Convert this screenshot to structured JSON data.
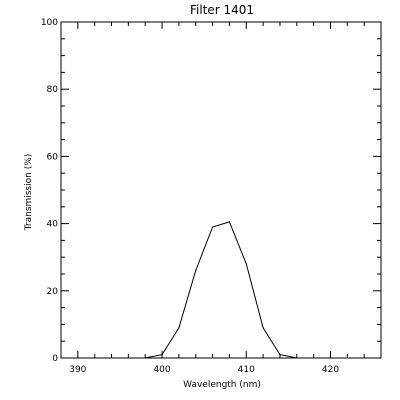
{
  "chart_data": {
    "type": "line",
    "title": "Filter 1401",
    "xlabel": "Wavelength (nm)",
    "ylabel": "Transmission (%)",
    "xlim": [
      388,
      426
    ],
    "ylim": [
      0,
      100
    ],
    "x_ticks": [
      390,
      400,
      410,
      420
    ],
    "x_tick_labels": [
      "390",
      "400",
      "410",
      "420"
    ],
    "y_ticks": [
      0,
      20,
      40,
      60,
      80,
      100
    ],
    "y_tick_labels": [
      "0",
      "20",
      "40",
      "60",
      "80",
      "100"
    ],
    "grid": false,
    "series": [
      {
        "x": [
          398,
          400,
          402,
          404,
          406,
          408,
          410,
          412,
          414,
          416,
          418
        ],
        "y": [
          0,
          1,
          9,
          26,
          39,
          40.5,
          28,
          9,
          1,
          0,
          0
        ]
      }
    ]
  }
}
